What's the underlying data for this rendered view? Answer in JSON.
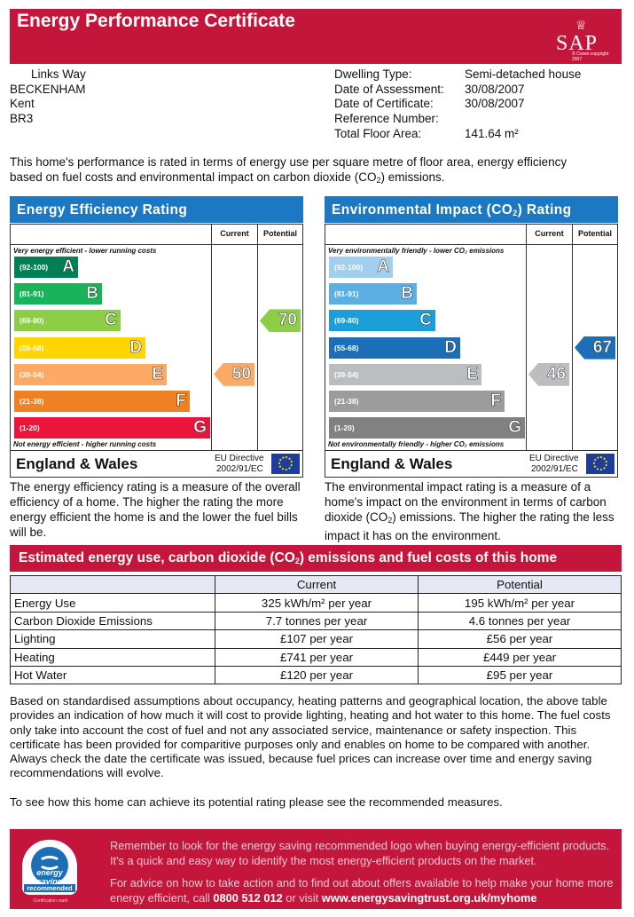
{
  "header": {
    "title": "Energy Performance Certificate",
    "logo_text": "SAP",
    "logo_copyright": "© Crown copyright 2007"
  },
  "address": {
    "line1": "Links Way",
    "line2": "BECKENHAM",
    "line3": "Kent",
    "line4": "BR3"
  },
  "details": {
    "dwelling_type_label": "Dwelling Type:",
    "dwelling_type": "Semi-detached house",
    "assessment_label": "Date of Assessment:",
    "assessment": "30/08/2007",
    "certificate_label": "Date of Certificate:",
    "certificate": "30/08/2007",
    "reference_label": "Reference Number:",
    "reference": "",
    "floor_area_label": "Total Floor Area:",
    "floor_area": "141.64 m²"
  },
  "intro": {
    "line1": "This home's performance is rated in terms of energy use per square metre of floor area, energy efficiency",
    "line2_a": "based on fuel costs and environmental impact on carbon dioxide (CO",
    "line2_sub": "2",
    "line2_b": ") emissions."
  },
  "efficiency": {
    "title": "Energy Efficiency Rating",
    "current_label": "Current",
    "potential_label": "Potential",
    "top_note": "Very energy efficient - lower running costs",
    "bottom_note": "Not energy efficient - higher running costs",
    "bands": [
      {
        "range": "(92-100)",
        "letter": "A",
        "color": "#008054"
      },
      {
        "range": "(81-91)",
        "letter": "B",
        "color": "#19b459"
      },
      {
        "range": "(69-80)",
        "letter": "C",
        "color": "#8dce46"
      },
      {
        "range": "(55-68)",
        "letter": "D",
        "color": "#ffd500"
      },
      {
        "range": "(39-54)",
        "letter": "E",
        "color": "#fcaa65"
      },
      {
        "range": "(21-38)",
        "letter": "F",
        "color": "#ef8023"
      },
      {
        "range": "(1-20)",
        "letter": "G",
        "color": "#e9153b"
      }
    ],
    "current": "50",
    "current_color": "#fcaa65",
    "potential": "70",
    "potential_color": "#8dce46",
    "region": "England & Wales",
    "eu_line1": "EU Directive",
    "eu_line2": "2002/91/EC",
    "description": "The energy efficiency rating is a measure of the overall efficiency of a home. The higher the rating the more energy efficient the home is and the lower the fuel bills will be."
  },
  "environmental": {
    "title_a": "Environmental Impact (CO",
    "title_sub": "2",
    "title_b": ") Rating",
    "current_label": "Current",
    "potential_label": "Potential",
    "top_note": "Very environmentally friendly - lower CO₂ emissions",
    "bottom_note": "Not environmentally friendly - higher CO₂ emissions",
    "bands": [
      {
        "range": "(92-100)",
        "letter": "A",
        "color": "#a3cfee"
      },
      {
        "range": "(81-91)",
        "letter": "B",
        "color": "#5ab0e4"
      },
      {
        "range": "(69-80)",
        "letter": "C",
        "color": "#1c9fd8"
      },
      {
        "range": "(55-68)",
        "letter": "D",
        "color": "#1c6fb7"
      },
      {
        "range": "(39-54)",
        "letter": "E",
        "color": "#bbbdbf"
      },
      {
        "range": "(21-38)",
        "letter": "F",
        "color": "#9b9c9e"
      },
      {
        "range": "(1-20)",
        "letter": "G",
        "color": "#808183"
      }
    ],
    "current": "46",
    "current_color": "#bbbdbf",
    "potential": "67",
    "potential_color": "#1c6fb7",
    "region": "England & Wales",
    "eu_line1": "EU Directive",
    "eu_line2": "2002/91/EC",
    "description_a": "The environmental impact rating is a measure of a home's impact on the environment in terms of carbon dioxide (CO",
    "description_sub": "2",
    "description_b": ") emissions. The higher the rating the less impact it has on the environment."
  },
  "estimate": {
    "title_a": "Estimated energy use, carbon dioxide (CO",
    "title_sub": "2",
    "title_b": ") emissions and fuel costs of this home",
    "col_current": "Current",
    "col_potential": "Potential",
    "rows": [
      {
        "label": "Energy Use",
        "current": "325 kWh/m² per year",
        "potential": "195 kWh/m² per year"
      },
      {
        "label": "Carbon Dioxide Emissions",
        "current": "7.7 tonnes per year",
        "potential": "4.6 tonnes per year"
      },
      {
        "label": "Lighting",
        "current": "£107 per year",
        "potential": "£56 per year"
      },
      {
        "label": "Heating",
        "current": "£741 per year",
        "potential": "£449 per year"
      },
      {
        "label": "Hot Water",
        "current": "£120 per year",
        "potential": "£95 per year"
      }
    ]
  },
  "notes": "Based on standardised assumptions about occupancy, heating patterns and geographical location, the above table provides an indication of how much it will cost to provide lighting, heating and hot water to this home. The fuel costs only take into account the cost of fuel and not any associated service, maintenance or safety inspection.  This certificate has been provided for comparitive purposes only and enables on home to be compared with another.  Always check the date the certificate was issued, because fuel prices can increase over time and energy saving recommendations will evolve.",
  "to_see": "To see how this home can achieve its potential rating please see the recommended measures.",
  "footer": {
    "badge_top": "energy saving",
    "badge_bottom": "recommended",
    "badge_mark": "Certification mark",
    "para1": "Remember to look for the energy saving recommended logo when buying energy-efficient products.  It's a quick and easy way to identify the most energy-efficient products on the market.",
    "para2_a": "For advice on how to take action and to find out about offers available to help make your home more energy efficient, call ",
    "phone": "0800 512 012",
    "para2_b": " or visit ",
    "url": "www.energysavingtrust.org.uk/myhome"
  }
}
